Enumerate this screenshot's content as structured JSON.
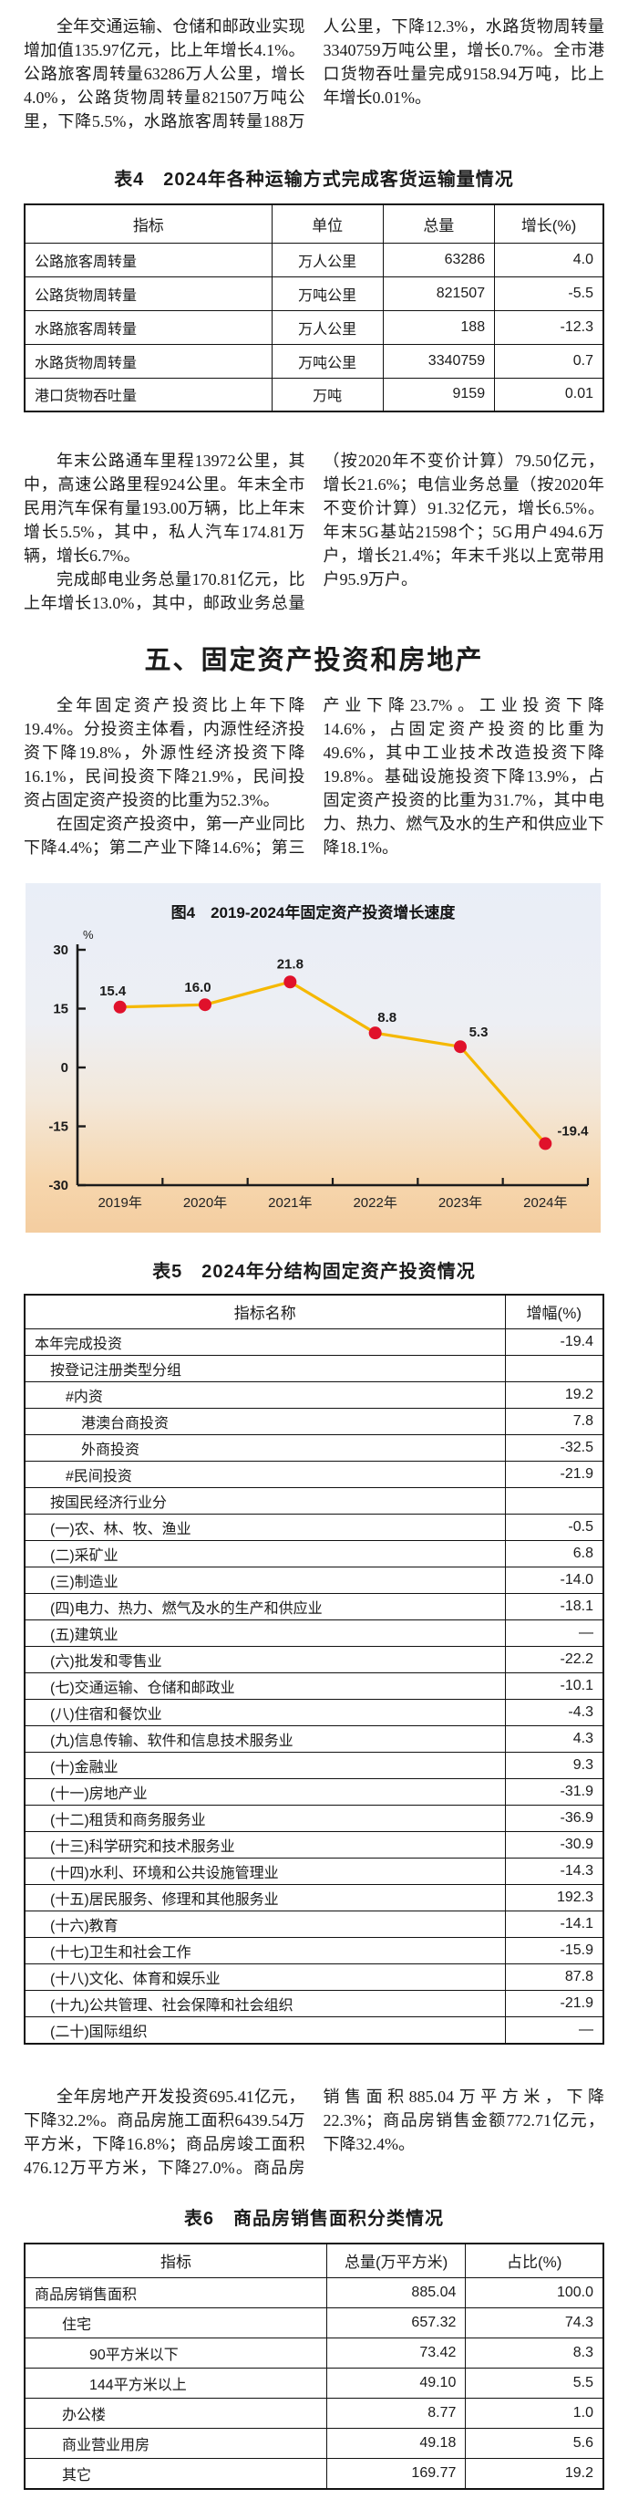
{
  "colors": {
    "text": "#1b1b1b",
    "table_border": "#111111",
    "chart_line": "#f5b800",
    "chart_marker": "#e0112b",
    "chart_bg_top": "#e9eef7",
    "chart_bg_bottom": "#f4cda0"
  },
  "paragraphs": {
    "p1": "全年交通运输、仓储和邮政业实现增加值135.97亿元，比上年增长4.1%。公路旅客周转量63286万人公里，增长4.0%，公路货物周转量821507万吨公里，下降5.5%，水路旅客周转量188万人公里，下降12.3%，水路货物周转量3340759万吨公里，增长0.7%。全市港口货物吞吐量完成9158.94万吨，比上年增长0.01%。",
    "p2": "年末公路通车里程13972公里，其中，高速公路里程924公里。年末全市民用汽车保有量193.00万辆，比上年末增长5.5%，其中，私人汽车174.81万辆，增长6.7%。",
    "p3": "完成邮电业务总量170.81亿元，比上年增长13.0%，其中，邮政业务总量（按2020年不变价计算）79.50亿元，增长21.6%；电信业务总量（按2020年不变价计算）91.32亿元，增长6.5%。年末5G基站21598个；5G用户494.6万户，增长21.4%；年末千兆以上宽带用户95.9万户。",
    "p4": "全年固定资产投资比上年下降19.4%。分投资主体看，内源性经济投资下降19.8%，外源性经济投资下降16.1%，民间投资下降21.9%，民间投资占固定资产投资的比重为52.3%。",
    "p5": "在固定资产投资中，第一产业同比下降4.4%；第二产业下降14.6%；第三产业下降23.7%。工业投资下降14.6%，占固定资产投资的比重为49.6%，其中工业技术改造投资下降19.8%。基础设施投资下降13.9%，占固定资产投资的比重为31.7%，其中电力、热力、燃气及水的生产和供应业下降18.1%。",
    "p6": "全年房地产开发投资695.41亿元，下降32.2%。商品房施工面积6439.54万平方米，下降16.8%；商品房竣工面积476.12万平方米，下降27.0%。商品房销售面积885.04万平方米，下降22.3%；商品房销售金额772.71亿元，下降32.4%。"
  },
  "section": {
    "heading": "五、固定资产投资和房地产"
  },
  "table4": {
    "title": "表4　2024年各种运输方式完成客货运输量情况",
    "headers": [
      "指标",
      "单位",
      "总量",
      "增长(%)"
    ],
    "rows": [
      {
        "name": "公路旅客周转量",
        "unit": "万人公里",
        "total": "63286",
        "growth": "4.0"
      },
      {
        "name": "公路货物周转量",
        "unit": "万吨公里",
        "total": "821507",
        "growth": "-5.5"
      },
      {
        "name": "水路旅客周转量",
        "unit": "万人公里",
        "total": "188",
        "growth": "-12.3"
      },
      {
        "name": "水路货物周转量",
        "unit": "万吨公里",
        "total": "3340759",
        "growth": "0.7"
      },
      {
        "name": "港口货物吞吐量",
        "unit": "万吨",
        "total": "9159",
        "growth": "0.01"
      }
    ]
  },
  "chart_data": {
    "type": "line",
    "title": "图4　2019-2024年固定资产投资增长速度",
    "categories": [
      "2019年",
      "2020年",
      "2021年",
      "2022年",
      "2023年",
      "2024年"
    ],
    "values": [
      15.4,
      16.0,
      21.8,
      8.8,
      5.3,
      -19.4
    ],
    "point_labels": [
      "15.4",
      "16.0",
      "21.8",
      "8.8",
      "5.3",
      "-19.4"
    ],
    "ylabel": "%",
    "xlabel": "",
    "ylim": [
      -30,
      30
    ],
    "yticks": [
      30,
      15,
      0,
      -15,
      -30
    ],
    "grid": false,
    "legend_position": "none",
    "line_color": "#f5b800",
    "marker_color": "#e0112b"
  },
  "table5": {
    "title": "表5　2024年分结构固定资产投资情况",
    "headers": [
      "指标名称",
      "增幅(%)"
    ],
    "rows": [
      {
        "name": "本年完成投资",
        "value": "-19.4",
        "indent": 0
      },
      {
        "name": "按登记注册类型分组",
        "value": "",
        "indent": 1
      },
      {
        "name": "#内资",
        "value": "19.2",
        "indent": 2
      },
      {
        "name": "港澳台商投资",
        "value": "7.8",
        "indent": 3
      },
      {
        "name": "外商投资",
        "value": "-32.5",
        "indent": 3
      },
      {
        "name": "#民间投资",
        "value": "-21.9",
        "indent": 2
      },
      {
        "name": "按国民经济行业分",
        "value": "",
        "indent": 1
      },
      {
        "name": "(一)农、林、牧、渔业",
        "value": "-0.5",
        "indent": 1
      },
      {
        "name": "(二)采矿业",
        "value": "6.8",
        "indent": 1
      },
      {
        "name": "(三)制造业",
        "value": "-14.0",
        "indent": 1
      },
      {
        "name": "(四)电力、热力、燃气及水的生产和供应业",
        "value": "-18.1",
        "indent": 1
      },
      {
        "name": "(五)建筑业",
        "value": "—",
        "indent": 1
      },
      {
        "name": "(六)批发和零售业",
        "value": "-22.2",
        "indent": 1
      },
      {
        "name": "(七)交通运输、仓储和邮政业",
        "value": "-10.1",
        "indent": 1
      },
      {
        "name": "(八)住宿和餐饮业",
        "value": "-4.3",
        "indent": 1
      },
      {
        "name": "(九)信息传输、软件和信息技术服务业",
        "value": "4.3",
        "indent": 1
      },
      {
        "name": "(十)金融业",
        "value": "9.3",
        "indent": 1
      },
      {
        "name": "(十一)房地产业",
        "value": "-31.9",
        "indent": 1
      },
      {
        "name": "(十二)租赁和商务服务业",
        "value": "-36.9",
        "indent": 1
      },
      {
        "name": "(十三)科学研究和技术服务业",
        "value": "-30.9",
        "indent": 1
      },
      {
        "name": "(十四)水利、环境和公共设施管理业",
        "value": "-14.3",
        "indent": 1
      },
      {
        "name": "(十五)居民服务、修理和其他服务业",
        "value": "192.3",
        "indent": 1
      },
      {
        "name": "(十六)教育",
        "value": "-14.1",
        "indent": 1
      },
      {
        "name": "(十七)卫生和社会工作",
        "value": "-15.9",
        "indent": 1
      },
      {
        "name": "(十八)文化、体育和娱乐业",
        "value": "87.8",
        "indent": 1
      },
      {
        "name": "(十九)公共管理、社会保障和社会组织",
        "value": "-21.9",
        "indent": 1
      },
      {
        "name": "(二十)国际组织",
        "value": "—",
        "indent": 1
      }
    ]
  },
  "table6": {
    "title": "表6　商品房销售面积分类情况",
    "headers": [
      "指标",
      "总量(万平方米)",
      "占比(%)"
    ],
    "rows": [
      {
        "name": "商品房销售面积",
        "total": "885.04",
        "share": "100.0",
        "indent": 0
      },
      {
        "name": "住宅",
        "total": "657.32",
        "share": "74.3",
        "indent": 1
      },
      {
        "name": "90平方米以下",
        "total": "73.42",
        "share": "8.3",
        "indent": 2
      },
      {
        "name": "144平方米以上",
        "total": "49.10",
        "share": "5.5",
        "indent": 2
      },
      {
        "name": "办公楼",
        "total": "8.77",
        "share": "1.0",
        "indent": 1
      },
      {
        "name": "商业营业用房",
        "total": "49.18",
        "share": "5.6",
        "indent": 1
      },
      {
        "name": "其它",
        "total": "169.77",
        "share": "19.2",
        "indent": 1
      }
    ]
  }
}
